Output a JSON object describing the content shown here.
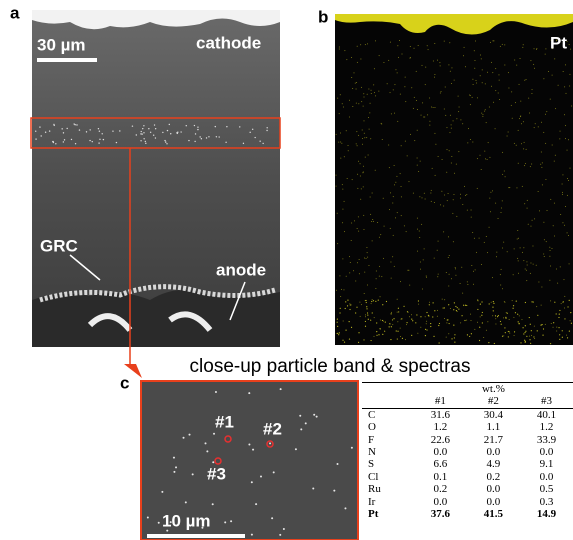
{
  "panel_a": {
    "label": "a",
    "scale_bar": "30 µm",
    "cathode": "cathode",
    "grc": "GRC",
    "anode": "anode"
  },
  "panel_b": {
    "label": "b",
    "element": "Pt"
  },
  "panel_c": {
    "label": "c",
    "title": "close-up particle band & spectras",
    "scale_bar": "10 µm",
    "particles": [
      "#1",
      "#2",
      "#3"
    ]
  },
  "table": {
    "unit": "wt.%",
    "columns": [
      "#1",
      "#2",
      "#3"
    ],
    "rows": [
      [
        "C",
        "31.6",
        "30.4",
        "40.1"
      ],
      [
        "O",
        "1.2",
        "1.1",
        "1.2"
      ],
      [
        "F",
        "22.6",
        "21.7",
        "33.9"
      ],
      [
        "N",
        "0.0",
        "0.0",
        "0.0"
      ],
      [
        "S",
        "6.6",
        "4.9",
        "9.1"
      ],
      [
        "Cl",
        "0.1",
        "0.2",
        "0.0"
      ],
      [
        "Ru",
        "0.2",
        "0.0",
        "0.5"
      ],
      [
        "Ir",
        "0.0",
        "0.0",
        "0.3"
      ],
      [
        "Pt",
        "37.6",
        "41.5",
        "14.9"
      ]
    ]
  }
}
